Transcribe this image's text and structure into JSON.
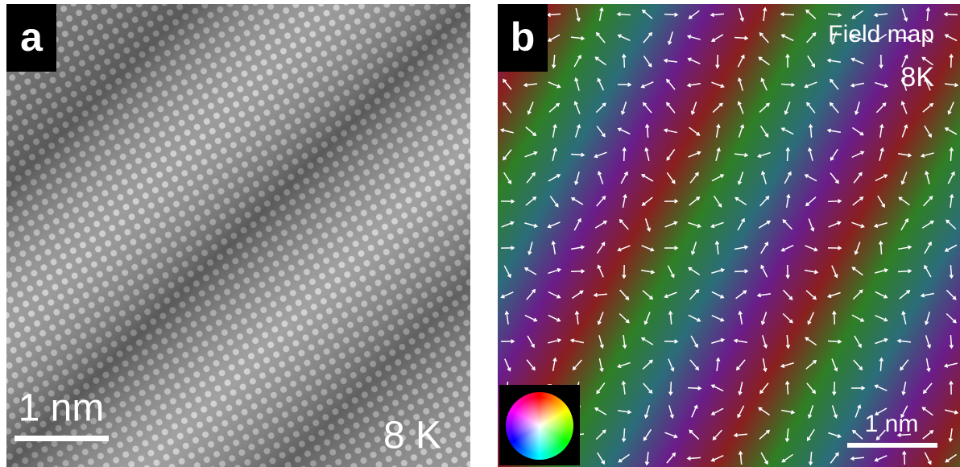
{
  "panels": [
    {
      "label": "a",
      "scale_bar": "1 nm",
      "temperature": "8 K"
    },
    {
      "label": "b",
      "title": "Field map",
      "temperature": "8K",
      "scale_bar": "1 nm"
    }
  ]
}
